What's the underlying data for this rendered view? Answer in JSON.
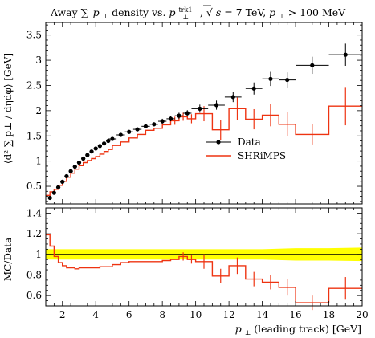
{
  "chart_data": [
    {
      "type": "line",
      "panel": "main",
      "title": "Away ∑ p⊥ density vs. p⊥trk1, √s = 7 TeV, p⊥ > 100 MeV",
      "title_parts": {
        "pre": "Away ∑",
        "p": "p",
        "perp": "⊥",
        "mid": " density vs. ",
        "trk_sup": "trk1",
        "sep": ", √",
        "s": "s",
        "energy": " = 7 TeV, ",
        "cut": " > 100 MeV"
      },
      "ylabel": "⟨d² ∑ p⊥ / dηdφ⟩ [GeV]",
      "ylim": [
        0.15,
        3.75
      ],
      "xlim": [
        1,
        20
      ],
      "yticks": [
        "0.5",
        "1",
        "1.5",
        "2",
        "2.5",
        "3",
        "3.5"
      ],
      "legend_position": "center-right",
      "series": [
        {
          "name": "Data",
          "kind": "points",
          "color": "#000000",
          "x": [
            1.25,
            1.5,
            1.75,
            2,
            2.25,
            2.5,
            2.75,
            3,
            3.25,
            3.5,
            3.75,
            4,
            4.25,
            4.5,
            4.75,
            5,
            5.5,
            6,
            6.5,
            7,
            7.5,
            8,
            8.5,
            9,
            9.5,
            10.25,
            11.25,
            12.25,
            13.5,
            14.5,
            15.5,
            17,
            19
          ],
          "xerr": [
            0.125,
            0.125,
            0.125,
            0.125,
            0.125,
            0.125,
            0.125,
            0.125,
            0.125,
            0.125,
            0.125,
            0.125,
            0.125,
            0.125,
            0.125,
            0.25,
            0.25,
            0.25,
            0.25,
            0.25,
            0.25,
            0.25,
            0.25,
            0.25,
            0.25,
            0.5,
            0.5,
            0.5,
            0.5,
            0.5,
            0.5,
            1,
            1
          ],
          "y": [
            0.27,
            0.37,
            0.48,
            0.59,
            0.7,
            0.8,
            0.89,
            0.97,
            1.05,
            1.12,
            1.19,
            1.25,
            1.3,
            1.35,
            1.4,
            1.44,
            1.52,
            1.58,
            1.63,
            1.69,
            1.73,
            1.79,
            1.84,
            1.9,
            1.95,
            2.04,
            2.11,
            2.27,
            2.44,
            2.63,
            2.61,
            2.9,
            3.11
          ],
          "yerr": [
            0.02,
            0.02,
            0.02,
            0.02,
            0.02,
            0.02,
            0.02,
            0.02,
            0.02,
            0.02,
            0.02,
            0.02,
            0.02,
            0.02,
            0.02,
            0.03,
            0.03,
            0.03,
            0.04,
            0.04,
            0.04,
            0.05,
            0.05,
            0.06,
            0.06,
            0.08,
            0.09,
            0.1,
            0.12,
            0.14,
            0.15,
            0.17,
            0.22
          ]
        },
        {
          "name": "SHRiMPS",
          "kind": "histogram",
          "color": "#ee3311",
          "edges": [
            1,
            1.25,
            1.5,
            1.75,
            2,
            2.25,
            2.5,
            2.75,
            3,
            3.25,
            3.5,
            3.75,
            4,
            4.25,
            4.5,
            4.75,
            5,
            5.5,
            6,
            6.5,
            7,
            7.5,
            8,
            8.5,
            9,
            9.5,
            10,
            11,
            12,
            13,
            14,
            15,
            16,
            18,
            20
          ],
          "values": [
            0.32,
            0.39,
            0.44,
            0.52,
            0.6,
            0.68,
            0.76,
            0.84,
            0.91,
            0.97,
            1.01,
            1.05,
            1.09,
            1.14,
            1.19,
            1.23,
            1.31,
            1.38,
            1.46,
            1.53,
            1.61,
            1.65,
            1.72,
            1.8,
            1.88,
            1.84,
            1.94,
            1.62,
            2.04,
            1.83,
            1.91,
            1.73,
            1.53,
            2.09
          ],
          "errors": [
            0,
            0,
            0,
            0,
            0,
            0,
            0,
            0,
            0,
            0,
            0,
            0,
            0,
            0,
            0,
            0,
            0,
            0,
            0,
            0,
            0,
            0,
            0,
            0.08,
            0.08,
            0.09,
            0.15,
            0.2,
            0.22,
            0.2,
            0.22,
            0.24,
            0.2,
            0.38
          ]
        }
      ]
    },
    {
      "type": "line",
      "panel": "ratio",
      "ylabel": "MC/Data",
      "xlabel": "p⊥ (leading track) [GeV]",
      "xlabel_parts": {
        "p": "p",
        "perp": "⊥",
        "rest": " (leading track) [GeV]"
      },
      "xlim": [
        1,
        20
      ],
      "ylim": [
        0.5,
        1.45
      ],
      "xticks": [
        "2",
        "4",
        "6",
        "8",
        "10",
        "12",
        "14",
        "16",
        "18",
        "20"
      ],
      "yticks": [
        "0.6",
        "0.8",
        "1",
        "1.2",
        "1.4"
      ],
      "band_color": "#ffff00",
      "band_x": [
        1,
        10,
        11,
        12,
        13,
        14,
        15,
        16,
        18,
        20
      ],
      "band_half": [
        0.05,
        0.05,
        0.05,
        0.05,
        0.05,
        0.05,
        0.055,
        0.06,
        0.06,
        0.065
      ],
      "reference": 1,
      "series": [
        {
          "name": "SHRiMPS",
          "kind": "histogram",
          "color": "#ee3311",
          "edges": [
            1,
            1.25,
            1.5,
            1.75,
            2,
            2.25,
            2.5,
            2.75,
            3,
            3.25,
            3.5,
            3.75,
            4,
            4.25,
            4.5,
            4.75,
            5,
            5.5,
            6,
            6.5,
            7,
            7.5,
            8,
            8.5,
            9,
            9.5,
            10,
            11,
            12,
            13,
            14,
            15,
            16,
            18,
            20
          ],
          "values": [
            1.19,
            1.08,
            0.98,
            0.92,
            0.89,
            0.87,
            0.87,
            0.86,
            0.87,
            0.87,
            0.87,
            0.87,
            0.87,
            0.88,
            0.88,
            0.88,
            0.9,
            0.92,
            0.93,
            0.93,
            0.93,
            0.93,
            0.94,
            0.95,
            0.98,
            0.95,
            0.93,
            0.79,
            0.89,
            0.76,
            0.73,
            0.68,
            0.53,
            0.67
          ],
          "errors": [
            0,
            0,
            0,
            0,
            0,
            0,
            0,
            0,
            0,
            0,
            0,
            0,
            0,
            0,
            0,
            0,
            0,
            0,
            0,
            0,
            0,
            0,
            0,
            0,
            0.04,
            0.04,
            0.07,
            0.07,
            0.08,
            0.07,
            0.07,
            0.08,
            0.07,
            0.11
          ]
        }
      ]
    }
  ]
}
